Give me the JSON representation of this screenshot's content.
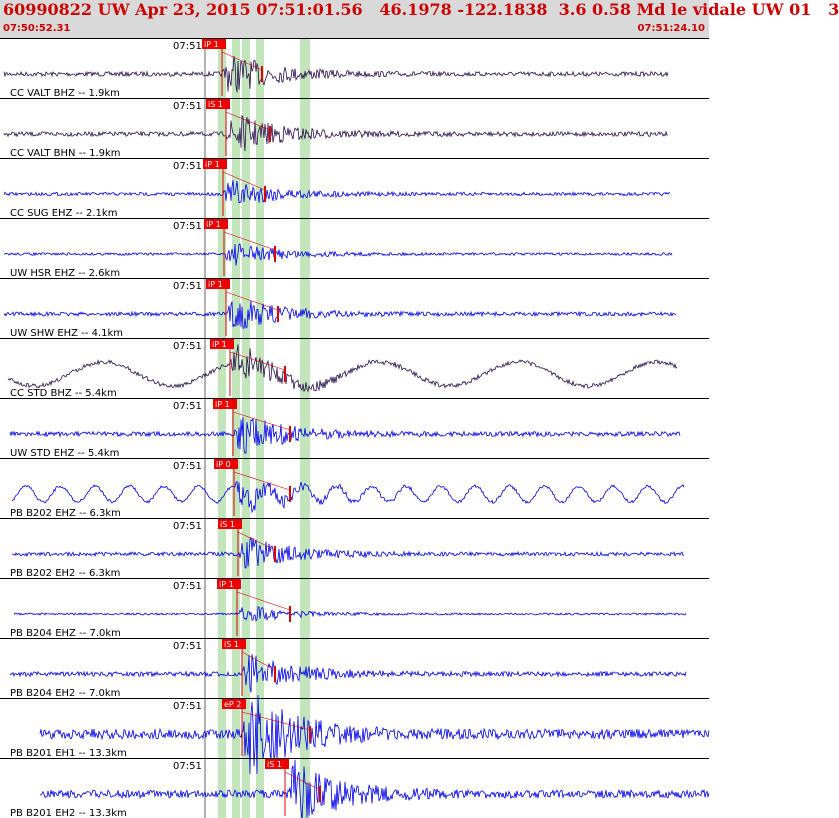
{
  "header": {
    "title": "60990822 UW Apr 23, 2015 07:51:01.56   46.1978 -122.1838  3.6 0.58 Md le vidale UW 01   3",
    "start_time": "07:50:52.31",
    "end_time": "07:51:24.10"
  },
  "colors": {
    "header_bg": "#d9d9d9",
    "header_text": "#cc0000",
    "pick_box": "#ee0000",
    "pick_band": "#b8e0b0",
    "trace_blue": "#0000ee",
    "trace_purple": "#2a1050",
    "marker_red": "#dd0000",
    "grid_line": "#000000"
  },
  "traces": [
    {
      "label": "CC VALT BHZ -- 1.9km",
      "minute": "07:51",
      "pick": "iP 1",
      "color": "purple",
      "amplitude": 0.35
    },
    {
      "label": "CC VALT BHN -- 1.9km",
      "minute": "07:51",
      "pick": "iS 1",
      "color": "purple",
      "amplitude": 0.35
    },
    {
      "label": "CC SUG EHZ -- 2.1km",
      "minute": "07:51",
      "pick": "iP 1",
      "color": "blue",
      "amplitude": 0.25
    },
    {
      "label": "UW HSR EHZ -- 2.6km",
      "minute": "07:51",
      "pick": "iP 1",
      "color": "blue",
      "amplitude": 0.2
    },
    {
      "label": "UW SHW EHZ -- 4.1km",
      "minute": "07:51",
      "pick": "iP 1",
      "color": "blue",
      "amplitude": 0.3
    },
    {
      "label": "CC STD BHZ -- 5.4km",
      "minute": "07:51",
      "pick": "iP 1",
      "color": "purple",
      "amplitude": 0.4
    },
    {
      "label": "UW STD EHZ -- 5.4km",
      "minute": "07:51",
      "pick": "iP 1",
      "color": "blue",
      "amplitude": 0.35
    },
    {
      "label": "PB B202 EHZ -- 6.3km",
      "minute": "07:51",
      "pick": "iP 0",
      "color": "blue",
      "amplitude": 0.45
    },
    {
      "label": "PB B202 EH2 -- 6.3km",
      "minute": "07:51",
      "pick": "iS 1",
      "color": "blue",
      "amplitude": 0.3
    },
    {
      "label": "PB B204 EHZ -- 7.0km",
      "minute": "07:51",
      "pick": "iP 1",
      "color": "blue",
      "amplitude": 0.15
    },
    {
      "label": "PB B204 EH2 -- 7.0km",
      "minute": "07:51",
      "pick": "iS 1",
      "color": "blue",
      "amplitude": 0.35
    },
    {
      "label": "PB B201 EH1 -- 13.3km",
      "minute": "07:51",
      "pick": "eP 2",
      "color": "blue",
      "amplitude": 0.75
    },
    {
      "label": "PB B201 EH2 -- 13.3km",
      "minute": "07:51",
      "pick": "iS 1",
      "color": "blue",
      "amplitude": 0.6
    }
  ]
}
